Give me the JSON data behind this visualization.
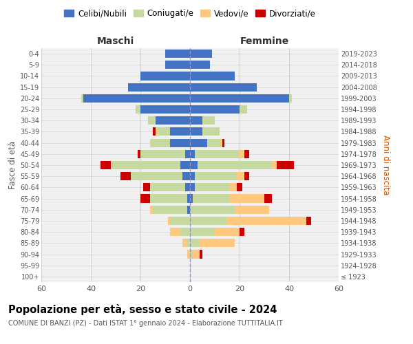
{
  "age_groups": [
    "100+",
    "95-99",
    "90-94",
    "85-89",
    "80-84",
    "75-79",
    "70-74",
    "65-69",
    "60-64",
    "55-59",
    "50-54",
    "45-49",
    "40-44",
    "35-39",
    "30-34",
    "25-29",
    "20-24",
    "15-19",
    "10-14",
    "5-9",
    "0-4"
  ],
  "birth_years": [
    "≤ 1923",
    "1924-1928",
    "1929-1933",
    "1934-1938",
    "1939-1943",
    "1944-1948",
    "1949-1953",
    "1954-1958",
    "1959-1963",
    "1964-1968",
    "1969-1973",
    "1974-1978",
    "1979-1983",
    "1984-1988",
    "1989-1993",
    "1994-1998",
    "1999-2003",
    "2004-2008",
    "2009-2013",
    "2014-2018",
    "2019-2023"
  ],
  "male": {
    "celibi": [
      0,
      0,
      0,
      0,
      0,
      0,
      1,
      1,
      2,
      3,
      4,
      2,
      8,
      8,
      14,
      20,
      43,
      25,
      20,
      10,
      10
    ],
    "coniugati": [
      0,
      0,
      0,
      1,
      4,
      8,
      14,
      15,
      14,
      21,
      28,
      18,
      8,
      5,
      3,
      2,
      1,
      0,
      0,
      0,
      0
    ],
    "vedovi": [
      0,
      0,
      1,
      2,
      4,
      1,
      1,
      0,
      0,
      0,
      0,
      0,
      0,
      1,
      0,
      0,
      0,
      0,
      0,
      0,
      0
    ],
    "divorziati": [
      0,
      0,
      0,
      0,
      0,
      0,
      0,
      4,
      3,
      4,
      4,
      1,
      0,
      1,
      0,
      0,
      0,
      0,
      0,
      0,
      0
    ]
  },
  "female": {
    "nubili": [
      0,
      0,
      0,
      0,
      0,
      0,
      0,
      1,
      2,
      2,
      3,
      2,
      7,
      5,
      5,
      20,
      40,
      27,
      18,
      8,
      9
    ],
    "coniugate": [
      0,
      0,
      1,
      4,
      10,
      15,
      18,
      15,
      14,
      17,
      30,
      18,
      5,
      7,
      5,
      3,
      1,
      0,
      0,
      0,
      0
    ],
    "vedove": [
      0,
      0,
      3,
      14,
      10,
      32,
      14,
      14,
      3,
      3,
      2,
      2,
      1,
      0,
      0,
      0,
      0,
      0,
      0,
      0,
      0
    ],
    "divorziate": [
      0,
      0,
      1,
      0,
      2,
      2,
      0,
      3,
      2,
      2,
      7,
      2,
      1,
      0,
      0,
      0,
      0,
      0,
      0,
      0,
      0
    ]
  },
  "colors": {
    "celibi": "#4472c4",
    "coniugati": "#c5d9a0",
    "vedovi": "#ffc87f",
    "divorziati": "#cc0000"
  },
  "title": "Popolazione per età, sesso e stato civile - 2024",
  "subtitle": "COMUNE DI BANZI (PZ) - Dati ISTAT 1° gennaio 2024 - Elaborazione TUTTITALIA.IT",
  "xlabel_left": "Maschi",
  "xlabel_right": "Femmine",
  "ylabel_left": "Fasce di età",
  "ylabel_right": "Anni di nascita",
  "xlim": 60,
  "bg_color": "#f0f0f0",
  "grid_color": "#cccccc"
}
